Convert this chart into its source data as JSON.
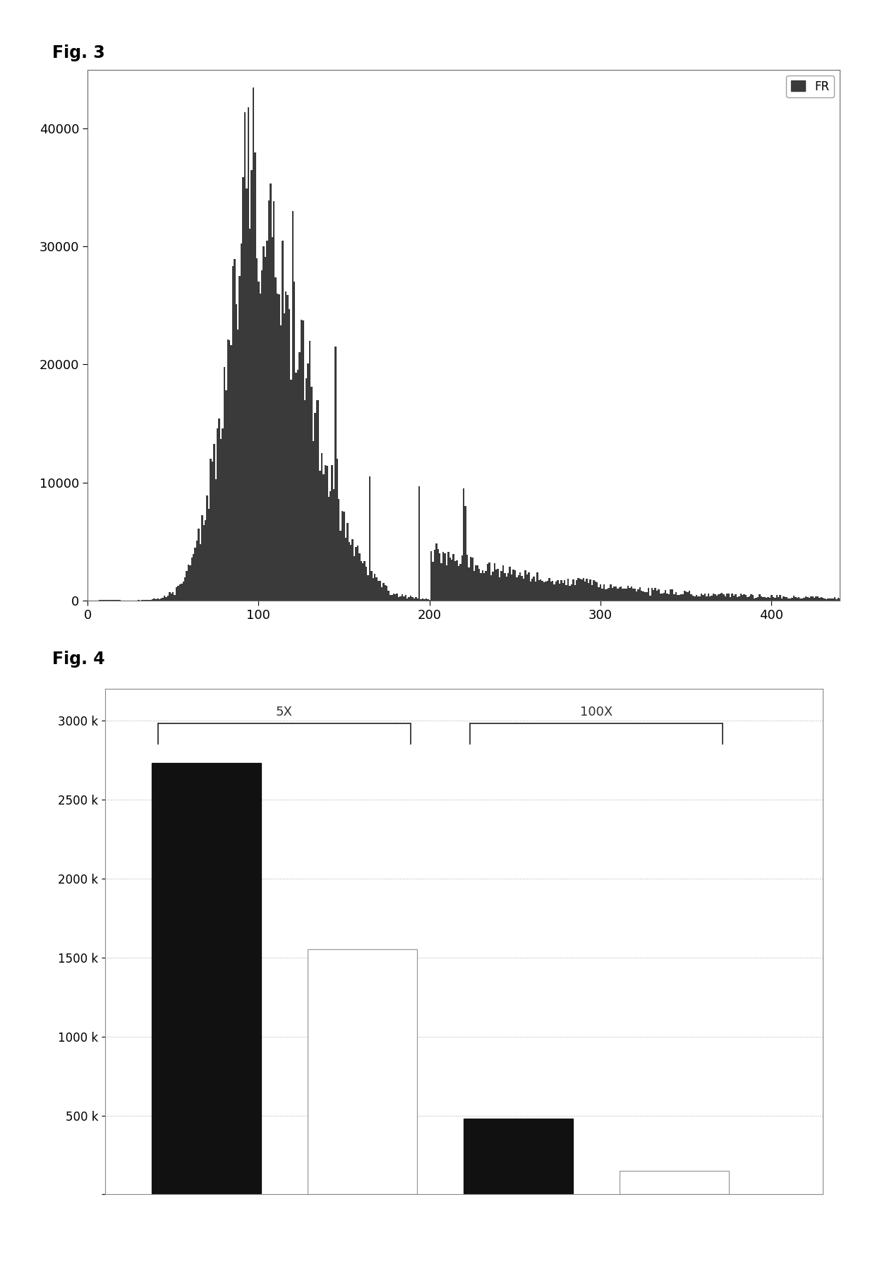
{
  "fig3": {
    "title": "Fig. 3",
    "xlim": [
      0,
      440
    ],
    "ylim": [
      0,
      45000
    ],
    "yticks": [
      0,
      10000,
      20000,
      30000,
      40000
    ],
    "xticks": [
      0,
      100,
      200,
      300,
      400
    ],
    "bar_color": "#3a3a3a",
    "legend_label": "FR"
  },
  "fig4": {
    "title": "Fig. 4",
    "values": [
      2730000,
      1550000,
      480000,
      150000
    ],
    "colors": [
      "#111111",
      "#ffffff",
      "#111111",
      "#ffffff"
    ],
    "edgecolors": [
      "#111111",
      "#999999",
      "#111111",
      "#999999"
    ],
    "ylim": [
      0,
      3200000
    ],
    "ytick_values": [
      0,
      500000,
      1000000,
      1500000,
      2000000,
      2500000,
      3000000
    ],
    "ytick_labels": [
      "",
      "500 k",
      "1000 k",
      "1500 k",
      "2000 k",
      "2500 k",
      "3000 k"
    ],
    "bracket1_label": "5X",
    "bracket2_label": "100X",
    "bar_width": 0.7
  }
}
